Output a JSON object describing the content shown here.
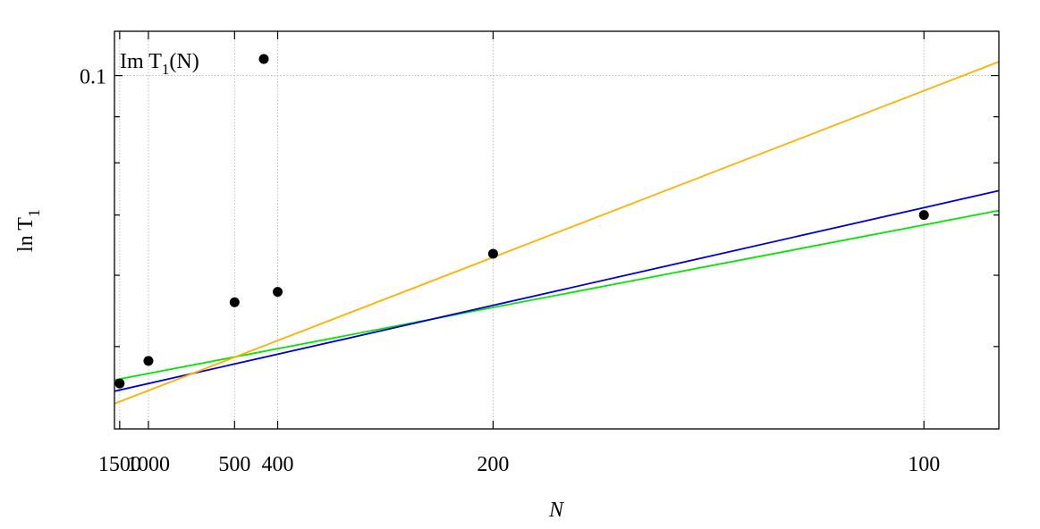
{
  "chart_data": {
    "type": "scatter",
    "xlabel": "N",
    "ylabel": "ln T",
    "ylabel_sub": "1",
    "x_scale": "reciprocal",
    "y_scale": "log",
    "xlim": [
      1650,
      92
    ],
    "ylim": [
      0.0405,
      0.112
    ],
    "x_ticks": [
      1500,
      1000,
      500,
      400,
      200,
      100
    ],
    "y_ticks_labeled": [
      0.1
    ],
    "y_ticks_minor": [
      0.09,
      0.08,
      0.07,
      0.06,
      0.05
    ],
    "grid": true,
    "legend": {
      "position": "top-left",
      "label_main": "Im T",
      "label_sub": "1",
      "label_tail": "(N)"
    },
    "series": [
      {
        "name": "Im T1(N)",
        "style": "points",
        "color": "#000000",
        "points": [
          {
            "x": 1500,
            "y": 0.0455
          },
          {
            "x": 1000,
            "y": 0.0482
          },
          {
            "x": 500,
            "y": 0.056
          },
          {
            "x": 400,
            "y": 0.0575
          },
          {
            "x": 200,
            "y": 0.0634
          },
          {
            "x": 100,
            "y": 0.07
          }
        ]
      }
    ],
    "fit_lines": [
      {
        "color": "#00e600",
        "points": [
          {
            "x": 1650,
            "y": 0.0459
          },
          {
            "x": 92,
            "y": 0.0708
          }
        ]
      },
      {
        "color": "#0000cc",
        "points": [
          {
            "x": 1650,
            "y": 0.0446
          },
          {
            "x": 92,
            "y": 0.0745
          }
        ]
      },
      {
        "color": "#ffb000",
        "points": [
          {
            "x": 1650,
            "y": 0.0432
          },
          {
            "x": 92,
            "y": 0.1036
          }
        ]
      }
    ]
  }
}
